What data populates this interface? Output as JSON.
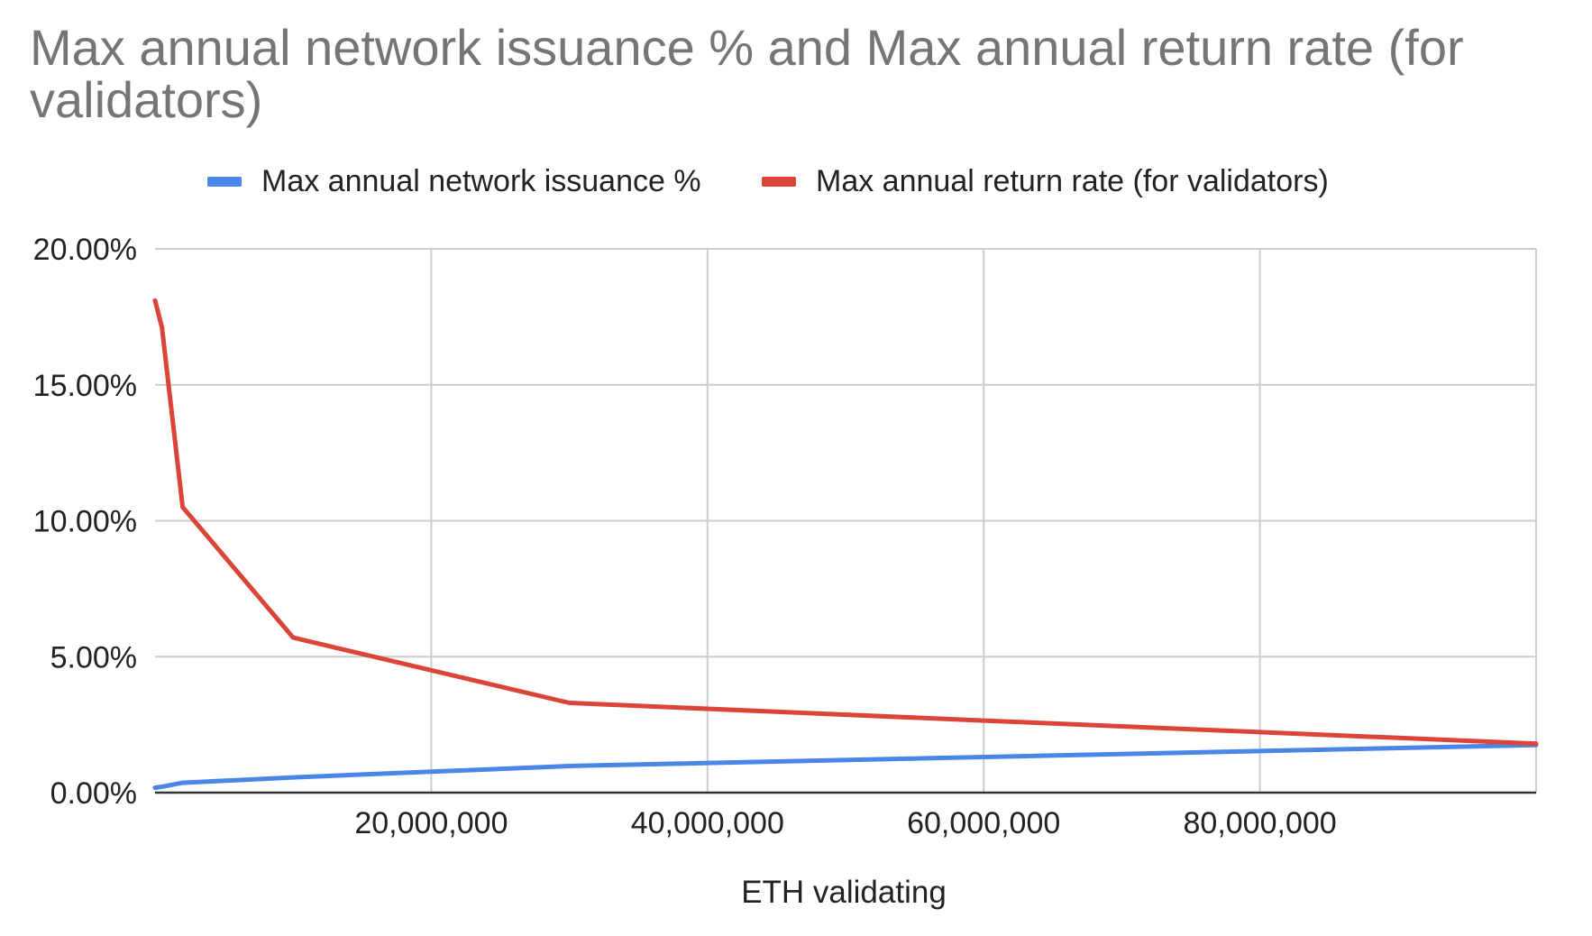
{
  "chart_data": {
    "type": "line",
    "title": "Max annual network issuance % and Max annual return rate (for validators)",
    "xlabel": "ETH validating",
    "ylabel": "",
    "xlim": [
      0,
      100000000
    ],
    "ylim": [
      0,
      20
    ],
    "grid": true,
    "legend_position": "top",
    "x_ticks": [
      20000000,
      40000000,
      60000000,
      80000000
    ],
    "x_tick_labels": [
      "20,000,000",
      "40,000,000",
      "60,000,000",
      "80,000,000"
    ],
    "y_ticks": [
      0,
      5,
      10,
      15,
      20
    ],
    "y_tick_labels": [
      "0.00%",
      "5.00%",
      "10.00%",
      "15.00%",
      "20.00%"
    ],
    "series": [
      {
        "name": "Max annual network issuance %",
        "color": "#4a86e8",
        "x": [
          0,
          500000,
          2000000,
          10000000,
          30000000,
          100000000
        ],
        "y": [
          0.18,
          0.22,
          0.36,
          0.56,
          0.98,
          1.75
        ]
      },
      {
        "name": "Max annual return rate (for validators)",
        "color": "#db4437",
        "x": [
          0,
          500000,
          2000000,
          10000000,
          30000000,
          60000000,
          100000000
        ],
        "y": [
          18.1,
          17.1,
          10.5,
          5.7,
          3.3,
          2.65,
          1.8
        ]
      }
    ]
  }
}
